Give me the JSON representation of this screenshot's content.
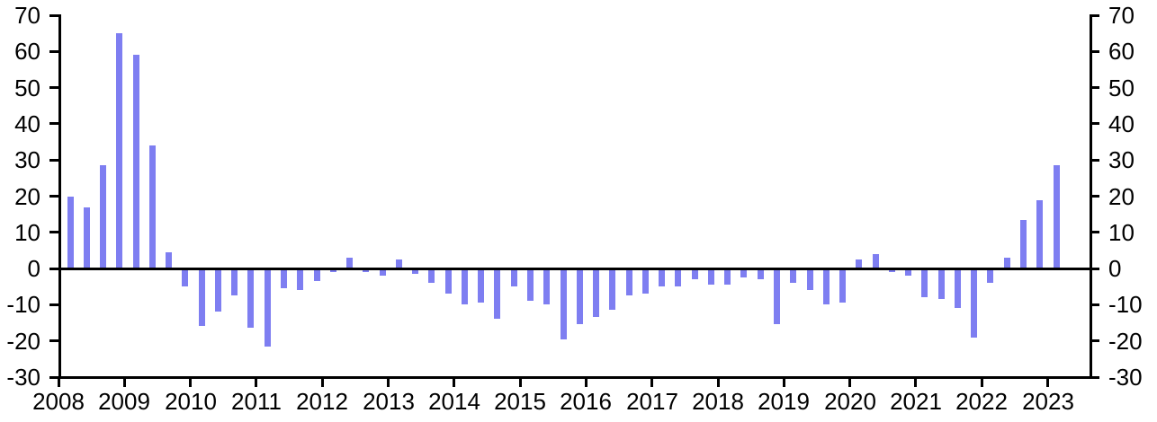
{
  "chart_data": {
    "type": "bar",
    "title": "",
    "grid": false,
    "legend": null,
    "background_color": "#ffffff",
    "axis_color": "#000000",
    "bar_color": "#7e7ef1",
    "ylim": [
      -30,
      70
    ],
    "y_tick_step": 10,
    "y_axis_left_tick_labels": [
      "70",
      "60",
      "50",
      "40",
      "30",
      "20",
      "10",
      "0",
      "-10",
      "-20",
      "-30"
    ],
    "y_axis_right_tick_labels": [
      "70",
      "60",
      "50",
      "40",
      "30",
      "20",
      "10",
      "0",
      "-10",
      "-20",
      "-30"
    ],
    "x_tick_labels": [
      "2008",
      "2009",
      "2010",
      "2011",
      "2012",
      "2013",
      "2014",
      "2015",
      "2016",
      "2017",
      "2018",
      "2019",
      "2020",
      "2021",
      "2022",
      "2023"
    ],
    "categories": [
      "2008 Q1",
      "2008 Q2",
      "2008 Q3",
      "2008 Q4",
      "2009 Q1",
      "2009 Q2",
      "2009 Q3",
      "2009 Q4",
      "2010 Q1",
      "2010 Q2",
      "2010 Q3",
      "2010 Q4",
      "2011 Q1",
      "2011 Q2",
      "2011 Q3",
      "2011 Q4",
      "2012 Q1",
      "2012 Q2",
      "2012 Q3",
      "2012 Q4",
      "2013 Q1",
      "2013 Q2",
      "2013 Q3",
      "2013 Q4",
      "2014 Q1",
      "2014 Q2",
      "2014 Q3",
      "2014 Q4",
      "2015 Q1",
      "2015 Q2",
      "2015 Q3",
      "2015 Q4",
      "2016 Q1",
      "2016 Q2",
      "2016 Q3",
      "2016 Q4",
      "2017 Q1",
      "2017 Q2",
      "2017 Q3",
      "2017 Q4",
      "2018 Q1",
      "2018 Q2",
      "2018 Q3",
      "2018 Q4",
      "2019 Q1",
      "2019 Q2",
      "2019 Q3",
      "2019 Q4",
      "2020 Q1",
      "2020 Q2",
      "2020 Q3",
      "2020 Q4",
      "2021 Q1",
      "2021 Q2",
      "2021 Q3",
      "2021 Q4",
      "2022 Q1",
      "2022 Q2",
      "2022 Q3",
      "2022 Q4",
      "2023 Q1"
    ],
    "values": [
      20,
      17,
      28.5,
      65,
      59,
      34,
      4.5,
      -5,
      -16,
      -12,
      -7.5,
      -16.5,
      -21.5,
      -5.5,
      -6,
      -3.5,
      -1,
      3,
      -1,
      -2,
      2.5,
      -1.5,
      -4,
      -7,
      -10,
      -9.5,
      -14,
      -5,
      -9,
      -10,
      -19.5,
      -15.5,
      -13.5,
      -11.5,
      -7.5,
      -7,
      -5,
      -5,
      -3,
      -4.5,
      -4.5,
      -2.5,
      -3,
      -15.5,
      -4,
      -6,
      -10,
      -9.5,
      2.5,
      4,
      -1,
      -2,
      -8,
      -8.5,
      -11,
      -19,
      -4,
      3,
      13.5,
      19,
      28.5
    ]
  }
}
